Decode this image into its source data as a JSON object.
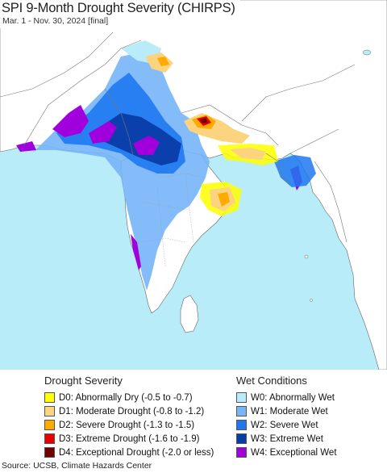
{
  "header": {
    "title": "SPI 9-Month Drought Severity (CHIRPS)",
    "subtitle": "Mar. 1 - Nov. 30, 2024 [final]"
  },
  "map": {
    "ocean_color": "#b8ecf8",
    "land_color": "#ffffff",
    "border_color": "#666666",
    "region": "South Asia"
  },
  "legend": {
    "drought": {
      "heading": "Drought Severity",
      "items": [
        {
          "code": "D0",
          "label": "D0: Abnormally Dry (-0.5 to -0.7)",
          "color": "#ffff00"
        },
        {
          "code": "D1",
          "label": "D1: Moderate Drought (-0.8 to -1.2)",
          "color": "#fcd37f"
        },
        {
          "code": "D2",
          "label": "D2: Severe Drought (-1.3 to -1.5)",
          "color": "#ffaa00"
        },
        {
          "code": "D3",
          "label": "D3: Extreme Drought (-1.6 to -1.9)",
          "color": "#e60000"
        },
        {
          "code": "D4",
          "label": "D4: Exceptional Drought (-2.0 or less)",
          "color": "#730000"
        }
      ]
    },
    "wet": {
      "heading": "Wet Conditions",
      "items": [
        {
          "code": "W0",
          "label": "W0: Abnormally Wet",
          "color": "#b9ecfb"
        },
        {
          "code": "W1",
          "label": "W1: Moderate Wet",
          "color": "#77b5f8"
        },
        {
          "code": "W2",
          "label": "W2: Severe Wet",
          "color": "#1e78f0"
        },
        {
          "code": "W3",
          "label": "W3: Extreme Wet",
          "color": "#0a3ca8"
        },
        {
          "code": "W4",
          "label": "W4: Exceptional Wet",
          "color": "#a000dc"
        }
      ]
    }
  },
  "footer": {
    "source": "Source: UCSB, Climate Hazards Center"
  }
}
